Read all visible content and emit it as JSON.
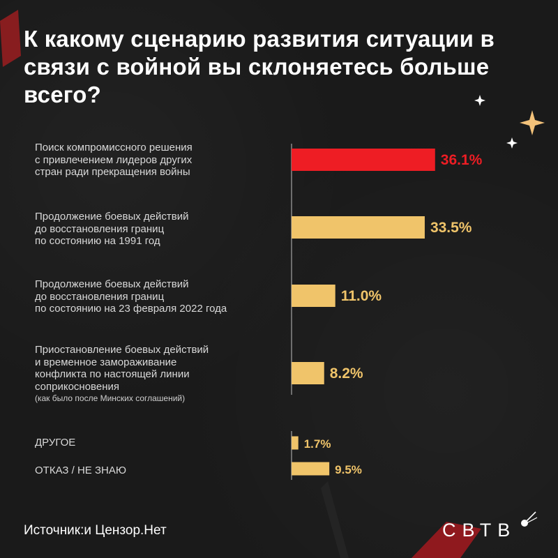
{
  "title": "К какому сценарию развития ситуации в связи с войной вы склоняетесь больше всего?",
  "chart_data": {
    "type": "bar",
    "orientation": "horizontal",
    "categories": [
      {
        "lines": [
          "Поиск компромиссного решения",
          "с привлечением лидеров других",
          "стран ради прекращения войны"
        ]
      },
      {
        "lines": [
          "Продолжение боевых действий",
          "до восстановления границ",
          "по состоянию на 1991 год"
        ]
      },
      {
        "lines": [
          "Продолжение боевых действий",
          "до восстановления границ",
          "по состоянию на 23 февраля 2022 года"
        ]
      },
      {
        "lines": [
          "Приостановление боевых действий",
          "и временное замораживание",
          "конфликта по настоящей линии",
          "соприкосновения"
        ],
        "note": "(как было после Минских соглашений)"
      },
      {
        "lines": [
          "ДРУГОЕ"
        ]
      },
      {
        "lines": [
          "ОТКАЗ / НЕ ЗНАЮ"
        ]
      }
    ],
    "values": [
      36.1,
      33.5,
      11.0,
      8.2,
      1.7,
      9.5
    ],
    "value_labels": [
      "36.1%",
      "33.5%",
      "11.0%",
      "8.2%",
      "1.7%",
      "9.5%"
    ],
    "highlight_index": 0,
    "colors": {
      "highlight": "#ee1d24",
      "bar": "#f0c46a",
      "axis": "#8a8a8a",
      "background": "#1a1a1a",
      "text": "#ffffff",
      "label": "#d9d9d9"
    },
    "grid": false,
    "legend": "none"
  },
  "source": "Источник:и Цензор.Нет",
  "logo": "СВТВ",
  "icons": [
    "sparkle-icon",
    "satellite-icon"
  ]
}
